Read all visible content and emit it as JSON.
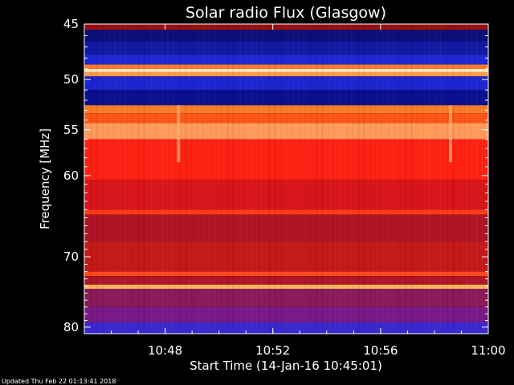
{
  "chart_data": {
    "type": "heatmap",
    "title": "Solar radio Flux (Glasgow)",
    "xlabel": "Start Time (14-Jan-16 10:45:01)",
    "ylabel": "Frequency [MHz]",
    "footer": "Updated Thu Feb 22 01:13:41 2018",
    "x_ticks": [
      "10:48",
      "10:52",
      "10:56",
      "11:00"
    ],
    "y_ticks": [
      "45",
      "50",
      "55",
      "60",
      "70",
      "80"
    ],
    "y_axis_scale": "log",
    "x_range_minutes": [
      0,
      15
    ],
    "y_range_mhz": [
      45,
      81
    ],
    "colormap": [
      "#000000",
      "#0a0f6a",
      "#1f28d4",
      "#7a1a88",
      "#c0161a",
      "#ff1a10",
      "#ff6a20",
      "#ffd77a",
      "#ffffff"
    ],
    "bands": [
      {
        "y0": 45,
        "y1": 45.5,
        "color": "#9a1010"
      },
      {
        "y0": 45.5,
        "y1": 46.5,
        "color": "#0b0f7a"
      },
      {
        "y0": 46.5,
        "y1": 47.7,
        "color": "#121aa5"
      },
      {
        "y0": 47.7,
        "y1": 48.6,
        "color": "#1f28d4"
      },
      {
        "y0": 48.6,
        "y1": 49.0,
        "color": "#ff7b2a"
      },
      {
        "y0": 49.0,
        "y1": 49.3,
        "color": "#ffe7bf"
      },
      {
        "y0": 49.3,
        "y1": 49.7,
        "color": "#ff9a45"
      },
      {
        "y0": 49.7,
        "y1": 51.0,
        "color": "#1d25d0"
      },
      {
        "y0": 51.0,
        "y1": 52.5,
        "color": "#0a1090"
      },
      {
        "y0": 52.5,
        "y1": 53.3,
        "color": "#ff7b2a"
      },
      {
        "y0": 53.3,
        "y1": 54.3,
        "color": "#ff5516"
      },
      {
        "y0": 54.3,
        "y1": 56.0,
        "color": "#ff9a5a"
      },
      {
        "y0": 56.0,
        "y1": 60.5,
        "color": "#ff2214"
      },
      {
        "y0": 60.5,
        "y1": 64.0,
        "color": "#d8151a"
      },
      {
        "y0": 64.0,
        "y1": 64.6,
        "color": "#ff3a18"
      },
      {
        "y0": 64.6,
        "y1": 68.0,
        "color": "#b01424"
      },
      {
        "y0": 68.0,
        "y1": 72.0,
        "color": "#c61a1a"
      },
      {
        "y0": 72.0,
        "y1": 72.6,
        "color": "#ff4a18"
      },
      {
        "y0": 72.6,
        "y1": 73.8,
        "color": "#b0162a"
      },
      {
        "y0": 73.8,
        "y1": 74.4,
        "color": "#ffb45a"
      },
      {
        "y0": 74.4,
        "y1": 77.0,
        "color": "#8a1a5a"
      },
      {
        "y0": 77.0,
        "y1": 79.3,
        "color": "#7a1a88"
      },
      {
        "y0": 79.3,
        "y1": 81.0,
        "color": "#3a28d0"
      }
    ],
    "bursts": [
      {
        "x": 3.5,
        "y0": 52.5,
        "y1": 58.5,
        "color": "#ffb06a"
      },
      {
        "x": 13.6,
        "y0": 52.5,
        "y1": 58.5,
        "color": "#ffb06a"
      }
    ],
    "grid": false,
    "legend": "none"
  }
}
